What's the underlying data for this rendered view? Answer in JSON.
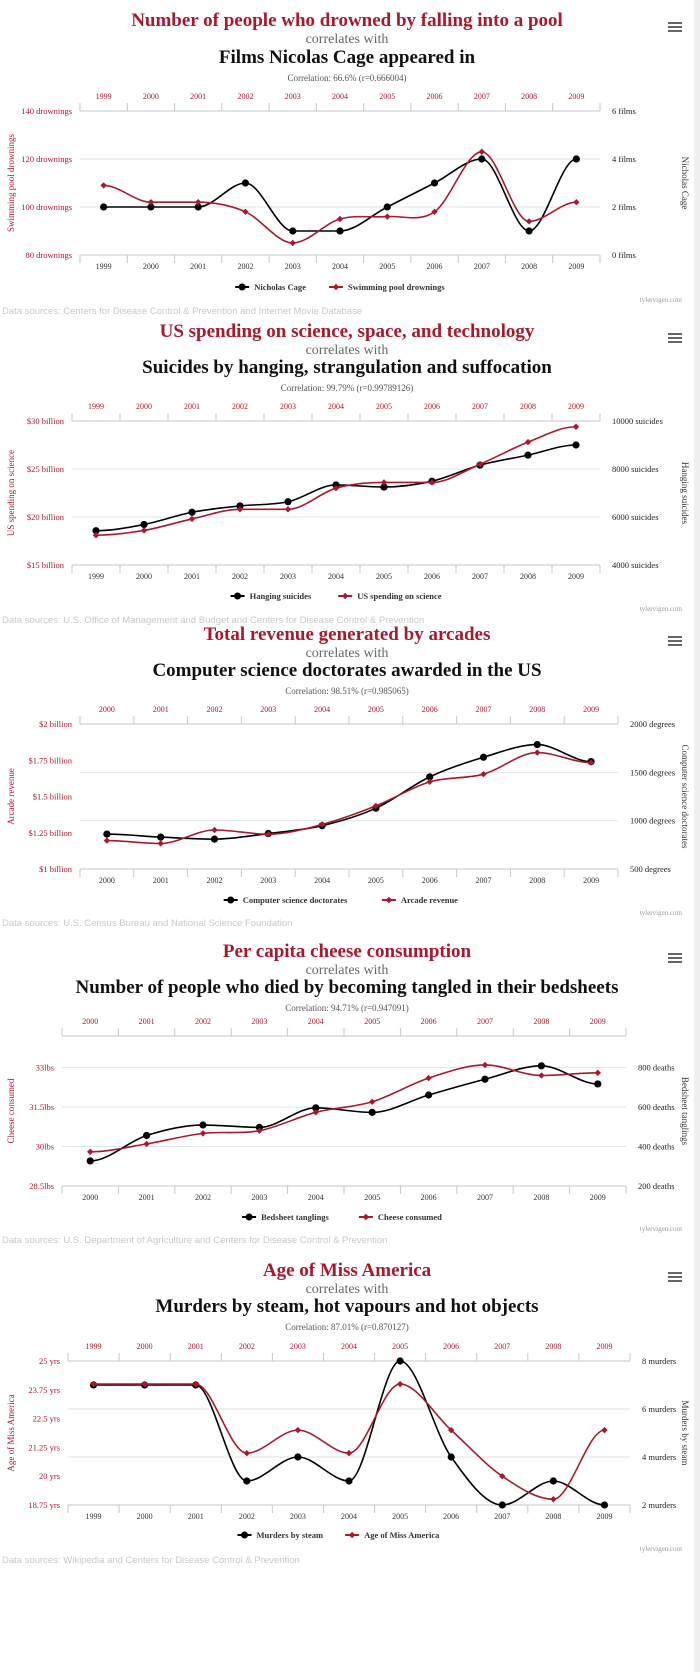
{
  "colors": {
    "accent": "#a8192e",
    "black": "#000000",
    "grid": "#dde3e8",
    "axis": "#c0c8d0"
  },
  "sections": [
    {
      "title": "Number of people who drowned by falling into a pool",
      "correlates_with": "correlates with",
      "subtitle": "Films Nicolas Cage appeared in",
      "correlation": "Correlation: 66.6% (r=0.666004)",
      "source": "Data sources: Centers for Disease Control & Prevention and Internet Movie Database",
      "credit": "tylervigen.com",
      "menu_icon": "hamburger-menu-icon"
    },
    {
      "title": "US spending on science, space, and technology",
      "correlates_with": "correlates with",
      "subtitle": "Suicides by hanging, strangulation and suffocation",
      "correlation": "Correlation: 99.79% (r=0.99789126)",
      "source": "Data sources: U.S. Office of Management and Budget and Centers for Disease Control & Prevention",
      "credit": "tylervigen.com",
      "menu_icon": "hamburger-menu-icon"
    },
    {
      "title": "Total revenue generated by arcades",
      "correlates_with": "correlates with",
      "subtitle": "Computer science doctorates awarded in the US",
      "correlation": "Correlation: 98.51% (r=0.985065)",
      "source": "Data sources: U.S. Census Bureau and National Science Foundation",
      "credit": "tylervigen.com",
      "menu_icon": "hamburger-menu-icon"
    },
    {
      "title": "Per capita cheese consumption",
      "correlates_with": "correlates with",
      "subtitle": "Number of people who died by becoming tangled in their bedsheets",
      "correlation": "Correlation: 94.71% (r=0.947091)",
      "source": "Data sources: U.S. Department of Agriculture and Centers for Disease Control & Prevention",
      "credit": "tylervigen.com",
      "menu_icon": "hamburger-menu-icon"
    },
    {
      "title": "Age of Miss America",
      "correlates_with": "correlates with",
      "subtitle": "Murders by steam, hot vapours and hot objects",
      "correlation": "Correlation: 87.01% (r=0.870127)",
      "source": "Data sources: Wikipedia and Centers for Disease Control & Prevention",
      "credit": "tylervigen.com",
      "menu_icon": "hamburger-menu-icon"
    }
  ],
  "chart_data": [
    {
      "type": "line",
      "title": "Number of people who drowned by falling into a pool correlates with Films Nicolas Cage appeared in",
      "categories": [
        "1999",
        "2000",
        "2001",
        "2002",
        "2003",
        "2004",
        "2005",
        "2006",
        "2007",
        "2008",
        "2009"
      ],
      "left_axis": {
        "label": "Swimming pool drownings",
        "ticks": [
          "80 drownings",
          "100 drownings",
          "120 drownings",
          "140 drownings"
        ],
        "range": [
          80,
          140
        ]
      },
      "right_axis": {
        "label": "Nicholas Cage",
        "ticks": [
          "0 films",
          "2 films",
          "4 films",
          "6 films"
        ],
        "range": [
          0,
          6
        ]
      },
      "grid": true,
      "legend_position": "bottom",
      "series": [
        {
          "name": "Nicholas Cage",
          "axis": "right",
          "color": "#000000",
          "values": [
            2,
            2,
            2,
            3,
            1,
            1,
            2,
            3,
            4,
            1,
            4
          ]
        },
        {
          "name": "Swimming pool drownings",
          "axis": "left",
          "color": "#a8192e",
          "values": [
            109,
            102,
            102,
            98,
            85,
            95,
            96,
            98,
            123,
            94,
            102
          ]
        }
      ]
    },
    {
      "type": "line",
      "title": "US spending on science, space, and technology correlates with Suicides by hanging, strangulation and suffocation",
      "categories": [
        "1999",
        "2000",
        "2001",
        "2002",
        "2003",
        "2004",
        "2005",
        "2006",
        "2007",
        "2008",
        "2009"
      ],
      "left_axis": {
        "label": "US spending on science",
        "ticks": [
          "$15 billion",
          "$20 billion",
          "$25 billion",
          "$30 billion"
        ],
        "range": [
          15,
          30
        ]
      },
      "right_axis": {
        "label": "Hanging suicides",
        "ticks": [
          "4000 suicides",
          "6000 suicides",
          "8000 suicides",
          "10000 suicides"
        ],
        "range": [
          4000,
          10000
        ]
      },
      "grid": true,
      "legend_position": "bottom",
      "series": [
        {
          "name": "Hanging suicides",
          "axis": "right",
          "color": "#000000",
          "values": [
            5427,
            5688,
            6198,
            6462,
            6635,
            7336,
            7248,
            7491,
            8161,
            8578,
            9000
          ]
        },
        {
          "name": "US spending on science",
          "axis": "left",
          "color": "#a8192e",
          "values": [
            18.1,
            18.6,
            19.8,
            20.8,
            20.8,
            23.0,
            23.6,
            23.6,
            25.5,
            27.8,
            29.4
          ]
        }
      ]
    },
    {
      "type": "line",
      "title": "Total revenue generated by arcades correlates with Computer science doctorates awarded in the US",
      "categories": [
        "2000",
        "2001",
        "2002",
        "2003",
        "2004",
        "2005",
        "2006",
        "2007",
        "2008",
        "2009"
      ],
      "left_axis": {
        "label": "Arcade revenue",
        "ticks": [
          "$1 billion",
          "$1.25 billion",
          "$1.5 billion",
          "$1.75 billion",
          "$2 billion"
        ],
        "range": [
          1,
          2
        ]
      },
      "right_axis": {
        "label": "Computer science doctorates",
        "ticks": [
          "500 degrees",
          "1000 degrees",
          "1500 degrees",
          "2000 degrees"
        ],
        "range": [
          500,
          2000
        ]
      },
      "grid": true,
      "legend_position": "bottom",
      "series": [
        {
          "name": "Computer science doctorates",
          "axis": "right",
          "color": "#000000",
          "values": [
            861,
            830,
            809,
            867,
            948,
            1129,
            1453,
            1656,
            1787,
            1611
          ]
        },
        {
          "name": "Arcade revenue",
          "axis": "left",
          "color": "#a8192e",
          "values": [
            1.196,
            1.176,
            1.269,
            1.24,
            1.307,
            1.435,
            1.601,
            1.654,
            1.803,
            1.734
          ]
        }
      ]
    },
    {
      "type": "line",
      "title": "Per capita cheese consumption correlates with Number of people who died by becoming tangled in their bedsheets",
      "categories": [
        "2000",
        "2001",
        "2002",
        "2003",
        "2004",
        "2005",
        "2006",
        "2007",
        "2008",
        "2009"
      ],
      "left_axis": {
        "label": "Cheese consumed",
        "ticks": [
          "28.5lbs",
          "30lbs",
          "31.5lbs",
          "33lbs"
        ],
        "range": [
          28.5,
          34.2
        ]
      },
      "right_axis": {
        "label": "Bedsheet tanglings",
        "ticks": [
          "200 deaths",
          "400 deaths",
          "600 deaths",
          "800 deaths"
        ],
        "range": [
          200,
          960
        ]
      },
      "grid": true,
      "legend_position": "bottom",
      "series": [
        {
          "name": "Bedsheet tanglings",
          "axis": "right",
          "color": "#000000",
          "values": [
            327,
            456,
            509,
            497,
            596,
            573,
            661,
            741,
            809,
            717
          ]
        },
        {
          "name": "Cheese consumed",
          "axis": "left",
          "color": "#a8192e",
          "values": [
            29.8,
            30.1,
            30.5,
            30.6,
            31.3,
            31.7,
            32.6,
            33.1,
            32.7,
            32.8
          ]
        }
      ]
    },
    {
      "type": "line",
      "title": "Age of Miss America correlates with Murders by steam, hot vapours and hot objects",
      "categories": [
        "1999",
        "2000",
        "2001",
        "2002",
        "2003",
        "2004",
        "2005",
        "2006",
        "2007",
        "2008",
        "2009"
      ],
      "left_axis": {
        "label": "Age of Miss America",
        "ticks": [
          "18.75 yrs",
          "20 yrs",
          "21.25 yrs",
          "22.5 yrs",
          "23.75 yrs",
          "25 yrs"
        ],
        "range": [
          18.75,
          25
        ]
      },
      "right_axis": {
        "label": "Murders by steam",
        "ticks": [
          "2 murders",
          "4 murders",
          "6 murders",
          "8 murders"
        ],
        "range": [
          2,
          8
        ]
      },
      "grid": true,
      "legend_position": "bottom",
      "series": [
        {
          "name": "Murders by steam",
          "axis": "right",
          "color": "#000000",
          "values": [
            7,
            7,
            7,
            3,
            4,
            3,
            8,
            4,
            2,
            3,
            2
          ]
        },
        {
          "name": "Age of Miss America",
          "axis": "left",
          "color": "#a8192e",
          "values": [
            24,
            24,
            24,
            21,
            22,
            21,
            24,
            22,
            20,
            19,
            22
          ]
        }
      ]
    }
  ]
}
